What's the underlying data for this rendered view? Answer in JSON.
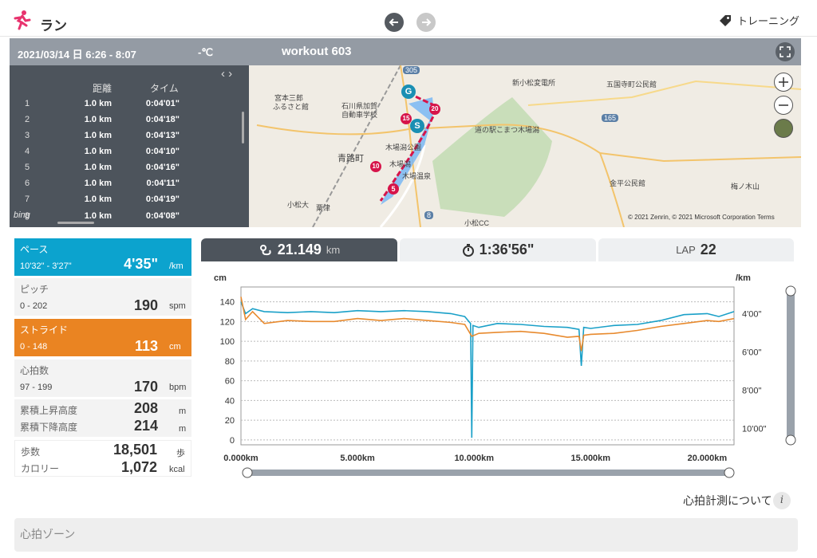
{
  "app": {
    "title": "ラン",
    "training_label": "トレーニング"
  },
  "header": {
    "date": "2021/03/14 日 6:26 - 8:07",
    "temperature": "-℃",
    "workout_title": "workout 603"
  },
  "laps": {
    "col_distance": "距離",
    "col_time": "タイム",
    "rows": [
      {
        "no": "1",
        "distance": "1.0 km",
        "time": "0:04'01\""
      },
      {
        "no": "2",
        "distance": "1.0 km",
        "time": "0:04'18\""
      },
      {
        "no": "3",
        "distance": "1.0 km",
        "time": "0:04'13\""
      },
      {
        "no": "4",
        "distance": "1.0 km",
        "time": "0:04'10\""
      },
      {
        "no": "5",
        "distance": "1.0 km",
        "time": "0:04'16\""
      },
      {
        "no": "6",
        "distance": "1.0 km",
        "time": "0:04'11\""
      },
      {
        "no": "7",
        "distance": "1.0 km",
        "time": "0:04'19\""
      },
      {
        "no": "8",
        "distance": "1.0 km",
        "time": "0:04'08\""
      }
    ]
  },
  "map": {
    "labels": [
      "宮本三郎",
      "ふるさと館",
      "石川県加賀",
      "自動車学校",
      "新小松変電所",
      "五国寺町公民館",
      "道の駅こまつ木場潟",
      "木場潟公園",
      "木場潟",
      "木場温泉",
      "青路町",
      "小松大",
      "粟津",
      "金平公民館",
      "梅ノ木山",
      "小松CC"
    ],
    "road_numbers": [
      "305",
      "165",
      "8"
    ],
    "copyright": "© 2021 Zenrin, © 2021 Microsoft Corporation  Terms",
    "bing": "bing",
    "markers": {
      "goal": "G",
      "start": "S",
      "km": [
        "5",
        "10",
        "15",
        "20"
      ]
    }
  },
  "metrics": {
    "pace": {
      "label": "ペース",
      "range": "10'32\" - 3'27\"",
      "value": "4'35\"",
      "unit": "/km"
    },
    "pitch": {
      "label": "ピッチ",
      "range": "0 - 202",
      "value": "190",
      "unit": "spm"
    },
    "stride": {
      "label": "ストライド",
      "range": "0 - 148",
      "value": "113",
      "unit": "cm"
    },
    "heart": {
      "label": "心拍数",
      "range": "97 - 199",
      "value": "170",
      "unit": "bpm"
    },
    "ascent": {
      "label": "累積上昇高度",
      "value": "208",
      "unit": "m"
    },
    "descent": {
      "label": "累積下降高度",
      "value": "214",
      "unit": "m"
    },
    "steps": {
      "label": "歩数",
      "value": "18,501",
      "unit": "歩"
    },
    "calories": {
      "label": "カロリー",
      "value": "1,072",
      "unit": "kcal"
    }
  },
  "tabs": {
    "distance_value": "21.149",
    "distance_unit": "km",
    "time_value": "1:36'56\"",
    "lap_label": "LAP",
    "lap_value": "22"
  },
  "chart_data": {
    "type": "line",
    "left_unit": "cm",
    "right_unit": "/km",
    "left_ticks": [
      "0",
      "20",
      "40",
      "60",
      "80",
      "100",
      "120",
      "140"
    ],
    "right_ticks": [
      "4'00\"",
      "6'00\"",
      "8'00\"",
      "10'00\""
    ],
    "x_ticks": [
      "0.000km",
      "5.000km",
      "10.000km",
      "15.000km",
      "20.000km"
    ],
    "xlim": [
      0,
      21.149
    ],
    "ylim": [
      -5,
      155
    ],
    "pace_ylim_min_per_km": [
      2.6,
      10.85
    ],
    "grid": true,
    "series": [
      {
        "color": "#1aa0c8",
        "x": [
          0,
          0.2,
          0.5,
          1,
          2,
          3,
          4,
          5,
          6,
          7,
          8,
          9,
          9.6,
          9.85,
          9.9,
          9.95,
          10.2,
          11,
          12,
          13,
          14,
          14.5,
          14.6,
          14.7,
          15,
          16,
          17,
          18,
          19,
          20,
          20.5,
          21.149
        ],
        "y": [
          140,
          128,
          133,
          130,
          129,
          130,
          129,
          131,
          130,
          131,
          130,
          128,
          125,
          118,
          2,
          116,
          114,
          118,
          117,
          115,
          114,
          112,
          75,
          114,
          113,
          116,
          117,
          121,
          127,
          128,
          125,
          130
        ]
      },
      {
        "color": "#e88a2e",
        "x": [
          0,
          0.2,
          0.5,
          1,
          2,
          3,
          4,
          5,
          6,
          7,
          8,
          9,
          9.6,
          9.9,
          10.2,
          11,
          12,
          13,
          14,
          14.5,
          14.6,
          14.7,
          15,
          16,
          17,
          18,
          19,
          20,
          20.5,
          21.149
        ],
        "y": [
          145,
          122,
          130,
          118,
          121,
          120,
          120,
          123,
          121,
          123,
          121,
          119,
          117,
          105,
          108,
          109,
          110,
          108,
          104,
          105,
          90,
          106,
          107,
          108,
          111,
          115,
          118,
          121,
          120,
          123
        ]
      }
    ]
  },
  "footer": {
    "hr_link": "心拍計測について",
    "info_glyph": "i",
    "hr_zone_title": "心拍ゾーン"
  }
}
